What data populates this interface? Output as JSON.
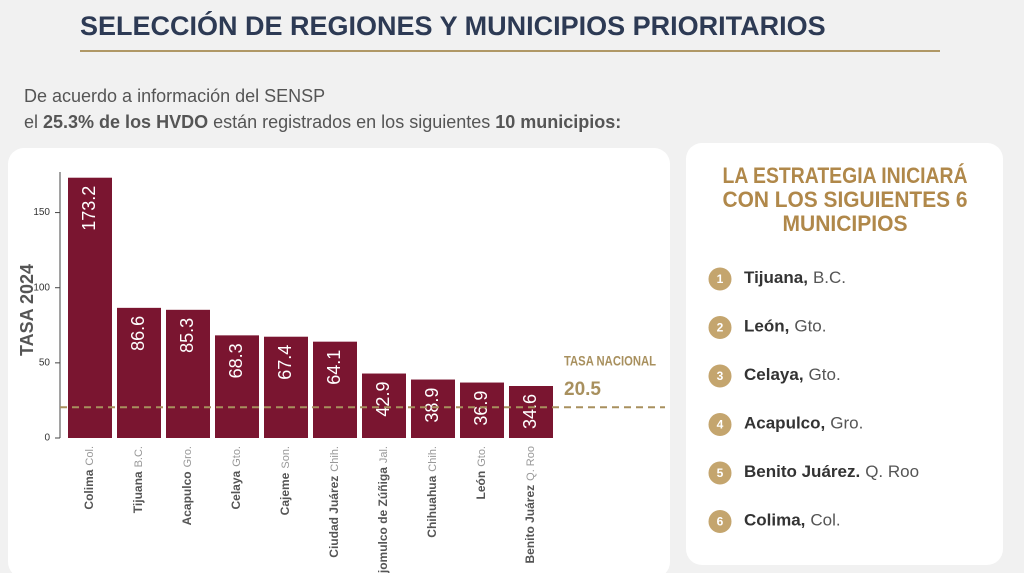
{
  "header": {
    "title": "SELECCIÓN DE REGIONES Y MUNICIPIOS PRIORITARIOS",
    "intro_line1": "De acuerdo a información del SENSP",
    "intro_line2": [
      {
        "text": "el",
        "bold": false
      },
      {
        "text": "25.3% de los HVDO",
        "bold": true
      },
      {
        "text": "están registrados en los siguientes",
        "bold": false
      },
      {
        "text": "10 municipios:",
        "bold": true
      }
    ]
  },
  "chart_data": {
    "type": "bar",
    "ylabel": "TASA 2024",
    "categories": [
      "Colima",
      "Tijuana",
      "Acapulco",
      "Celaya",
      "Cajeme",
      "Ciudad Juárez",
      "Tlajomulco de Zúñiga",
      "Chihuahua",
      "León",
      "Benito Juárez"
    ],
    "category_states": [
      "Col.",
      "B.C.",
      "Gro.",
      "Gto.",
      "Son.",
      "Chih.",
      "Jal.",
      "Chih.",
      "Gto.",
      "Q. Roo"
    ],
    "values": [
      173.2,
      86.6,
      85.3,
      68.3,
      67.4,
      64.1,
      42.9,
      38.9,
      36.9,
      34.6
    ],
    "color": "#7a1530",
    "ylim": [
      0,
      175
    ],
    "yticks": [
      0,
      50,
      100,
      150
    ],
    "reference_line": {
      "label": "TASA NACIONAL",
      "value": 20.5,
      "color": "#a8905e"
    }
  },
  "panel": {
    "title_lines": [
      "LA ESTRATEGIA INICIARÁ",
      "CON LOS SIGUIENTES 6",
      "MUNICIPIOS"
    ],
    "items": [
      {
        "number": 1,
        "name": "Tijuana,",
        "state": "B.C."
      },
      {
        "number": 2,
        "name": "León,",
        "state": "Gto."
      },
      {
        "number": 3,
        "name": "Celaya,",
        "state": "Gto."
      },
      {
        "number": 4,
        "name": "Acapulco,",
        "state": "Gro."
      },
      {
        "number": 5,
        "name": "Benito Juárez.",
        "state": "Q. Roo"
      },
      {
        "number": 6,
        "name": "Colima,",
        "state": "Col."
      }
    ]
  }
}
